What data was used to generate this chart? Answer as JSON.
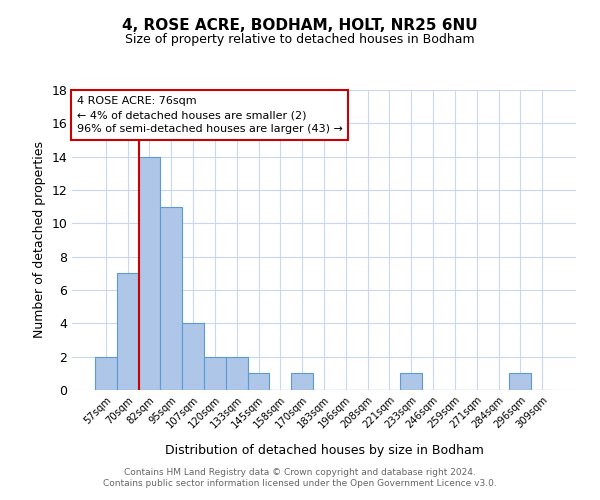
{
  "title": "4, ROSE ACRE, BODHAM, HOLT, NR25 6NU",
  "subtitle": "Size of property relative to detached houses in Bodham",
  "xlabel": "Distribution of detached houses by size in Bodham",
  "ylabel": "Number of detached properties",
  "categories": [
    "57sqm",
    "70sqm",
    "82sqm",
    "95sqm",
    "107sqm",
    "120sqm",
    "133sqm",
    "145sqm",
    "158sqm",
    "170sqm",
    "183sqm",
    "196sqm",
    "208sqm",
    "221sqm",
    "233sqm",
    "246sqm",
    "259sqm",
    "271sqm",
    "284sqm",
    "296sqm",
    "309sqm"
  ],
  "values": [
    2,
    7,
    14,
    11,
    4,
    2,
    2,
    1,
    0,
    1,
    0,
    0,
    0,
    0,
    1,
    0,
    0,
    0,
    0,
    1,
    0
  ],
  "bar_color": "#aec6e8",
  "bar_edge_color": "#5b9bd5",
  "highlight_line_color": "#cc0000",
  "annotation_text": "4 ROSE ACRE: 76sqm\n← 4% of detached houses are smaller (2)\n96% of semi-detached houses are larger (43) →",
  "annotation_box_color": "#ffffff",
  "annotation_box_edge_color": "#cc0000",
  "ylim": [
    0,
    18
  ],
  "yticks": [
    0,
    2,
    4,
    6,
    8,
    10,
    12,
    14,
    16,
    18
  ],
  "footer": "Contains HM Land Registry data © Crown copyright and database right 2024.\nContains public sector information licensed under the Open Government Licence v3.0.",
  "background_color": "#ffffff",
  "grid_color": "#c8d8ee",
  "red_line_x": 1.5
}
